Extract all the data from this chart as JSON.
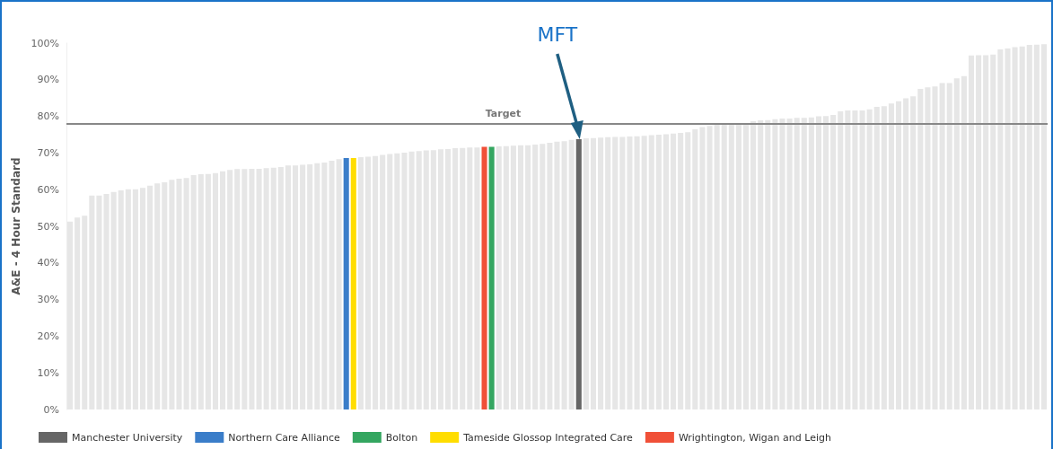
{
  "chart_data": {
    "type": "bar",
    "ylabel": "A&E - 4 Hour Standard",
    "categories": [
      null,
      null,
      null,
      null,
      null,
      null,
      null,
      null,
      null,
      null,
      null,
      null,
      null,
      null,
      null,
      null,
      null,
      null,
      null,
      null,
      null,
      null,
      null,
      null,
      null,
      null,
      null,
      null,
      null,
      null,
      null,
      null,
      null,
      null,
      null,
      null,
      null,
      null,
      null,
      null,
      null,
      null,
      null,
      null,
      null,
      null,
      null,
      null,
      null,
      null,
      null,
      null,
      null,
      null,
      null,
      null,
      null,
      null,
      null,
      null,
      null,
      null,
      null,
      null,
      null,
      null,
      null,
      null,
      null,
      null,
      null,
      null,
      null,
      null,
      null,
      null,
      null,
      null,
      null,
      null,
      null,
      null,
      null,
      null,
      null,
      null,
      null,
      null,
      null,
      null,
      null,
      null,
      null,
      null,
      null,
      null,
      null,
      null,
      null,
      null,
      null,
      null,
      null,
      null,
      null,
      null,
      null,
      null,
      null,
      null,
      null,
      null,
      null,
      null,
      null,
      null,
      null,
      null,
      null,
      null,
      null,
      null,
      null,
      null,
      null,
      null,
      null,
      null,
      null,
      null,
      null,
      null,
      null,
      null,
      null
    ],
    "series": [
      {
        "color": "#e6e6e6",
        "values": [
          51.3,
          52.4,
          52.9,
          58.4,
          58.4,
          58.8,
          59.4,
          59.8,
          60.1,
          60.1,
          60.5,
          61.1,
          61.7,
          62.0,
          62.7,
          63.0,
          63.2,
          64.0,
          64.2,
          64.3,
          64.5,
          65.0,
          65.4,
          65.6,
          65.6,
          65.7,
          65.7,
          65.9,
          66.0,
          66.2,
          66.6,
          66.6,
          66.8,
          66.9,
          67.2,
          67.4,
          67.9,
          68.3,
          null,
          null,
          68.9,
          69.0,
          69.2,
          69.5,
          69.7,
          69.9,
          70.1,
          70.4,
          70.5,
          70.7,
          70.8,
          71.0,
          71.1,
          71.3,
          71.4,
          71.5,
          71.5,
          null,
          null,
          71.8,
          71.9,
          72.0,
          72.1,
          72.1,
          72.3,
          72.5,
          72.8,
          73.1,
          73.2,
          73.6,
          null,
          74.0,
          74.1,
          74.2,
          74.3,
          74.4,
          74.4,
          74.5,
          74.6,
          74.7,
          74.9,
          75.0,
          75.1,
          75.3,
          75.5,
          75.7,
          76.5,
          77.1,
          77.4,
          77.7,
          77.7,
          77.8,
          77.8,
          78.0,
          78.7,
          78.9,
          79.0,
          79.2,
          79.4,
          79.4,
          79.6,
          79.6,
          79.7,
          80.0,
          80.1,
          80.4,
          81.4,
          81.6,
          81.6,
          81.6,
          81.9,
          82.6,
          82.8,
          83.5,
          84.1,
          84.9,
          85.5,
          87.5,
          87.9,
          88.2,
          89.1,
          89.1,
          90.4,
          91.0,
          96.6,
          96.7,
          96.7,
          96.9,
          98.3,
          98.5,
          98.9,
          99.1,
          99.5,
          99.6,
          99.7
        ]
      },
      {
        "name": "Manchester University",
        "color": "#666666",
        "values": [
          null,
          null,
          null,
          null,
          null,
          null,
          null,
          null,
          null,
          null,
          null,
          null,
          null,
          null,
          null,
          null,
          null,
          null,
          null,
          null,
          null,
          null,
          null,
          null,
          null,
          null,
          null,
          null,
          null,
          null,
          null,
          null,
          null,
          null,
          null,
          null,
          null,
          null,
          null,
          null,
          null,
          null,
          null,
          null,
          null,
          null,
          null,
          null,
          null,
          null,
          null,
          null,
          null,
          null,
          null,
          null,
          null,
          null,
          null,
          null,
          null,
          null,
          null,
          null,
          null,
          null,
          null,
          null,
          null,
          null,
          73.8,
          null,
          null,
          null,
          null,
          null,
          null,
          null,
          null,
          null,
          null,
          null,
          null,
          null,
          null,
          null,
          null,
          null,
          null,
          null,
          null,
          null,
          null,
          null,
          null,
          null,
          null,
          null,
          null,
          null,
          null,
          null,
          null,
          null,
          null,
          null,
          null,
          null,
          null,
          null,
          null,
          null,
          null,
          null,
          null,
          null,
          null,
          null,
          null,
          null,
          null,
          null,
          null,
          null,
          null,
          null,
          null,
          null,
          null,
          null,
          null,
          null,
          null,
          null,
          null
        ]
      },
      {
        "name": "Northern Care Alliance",
        "color": "#3a7dc9",
        "values": [
          null,
          null,
          null,
          null,
          null,
          null,
          null,
          null,
          null,
          null,
          null,
          null,
          null,
          null,
          null,
          null,
          null,
          null,
          null,
          null,
          null,
          null,
          null,
          null,
          null,
          null,
          null,
          null,
          null,
          null,
          null,
          null,
          null,
          null,
          null,
          null,
          null,
          null,
          68.6,
          null,
          null,
          null,
          null,
          null,
          null,
          null,
          null,
          null,
          null,
          null,
          null,
          null,
          null,
          null,
          null,
          null,
          null,
          null,
          null,
          null,
          null,
          null,
          null,
          null,
          null,
          null,
          null,
          null,
          null,
          null,
          null,
          null,
          null,
          null,
          null,
          null,
          null,
          null,
          null,
          null,
          null,
          null,
          null,
          null,
          null,
          null,
          null,
          null,
          null,
          null,
          null,
          null,
          null,
          null,
          null,
          null,
          null,
          null,
          null,
          null,
          null,
          null,
          null,
          null,
          null,
          null,
          null,
          null,
          null,
          null,
          null,
          null,
          null,
          null,
          null,
          null,
          null,
          null,
          null,
          null,
          null,
          null,
          null,
          null,
          null,
          null,
          null,
          null,
          null,
          null,
          null,
          null,
          null,
          null,
          null
        ]
      },
      {
        "name": "Bolton",
        "color": "#34a660",
        "values": [
          null,
          null,
          null,
          null,
          null,
          null,
          null,
          null,
          null,
          null,
          null,
          null,
          null,
          null,
          null,
          null,
          null,
          null,
          null,
          null,
          null,
          null,
          null,
          null,
          null,
          null,
          null,
          null,
          null,
          null,
          null,
          null,
          null,
          null,
          null,
          null,
          null,
          null,
          null,
          null,
          null,
          null,
          null,
          null,
          null,
          null,
          null,
          null,
          null,
          null,
          null,
          null,
          null,
          null,
          null,
          null,
          null,
          null,
          71.7,
          null,
          null,
          null,
          null,
          null,
          null,
          null,
          null,
          null,
          null,
          null,
          null,
          null,
          null,
          null,
          null,
          null,
          null,
          null,
          null,
          null,
          null,
          null,
          null,
          null,
          null,
          null,
          null,
          null,
          null,
          null,
          null,
          null,
          null,
          null,
          null,
          null,
          null,
          null,
          null,
          null,
          null,
          null,
          null,
          null,
          null,
          null,
          null,
          null,
          null,
          null,
          null,
          null,
          null,
          null,
          null,
          null,
          null,
          null,
          null,
          null,
          null,
          null,
          null,
          null,
          null,
          null,
          null,
          null,
          null,
          null,
          null,
          null,
          null,
          null,
          null
        ]
      },
      {
        "name": "Tameside Glossop Integrated Care",
        "color": "#ffdd00",
        "values": [
          null,
          null,
          null,
          null,
          null,
          null,
          null,
          null,
          null,
          null,
          null,
          null,
          null,
          null,
          null,
          null,
          null,
          null,
          null,
          null,
          null,
          null,
          null,
          null,
          null,
          null,
          null,
          null,
          null,
          null,
          null,
          null,
          null,
          null,
          null,
          null,
          null,
          null,
          null,
          68.6,
          null,
          null,
          null,
          null,
          null,
          null,
          null,
          null,
          null,
          null,
          null,
          null,
          null,
          null,
          null,
          null,
          null,
          null,
          null,
          null,
          null,
          null,
          null,
          null,
          null,
          null,
          null,
          null,
          null,
          null,
          null,
          null,
          null,
          null,
          null,
          null,
          null,
          null,
          null,
          null,
          null,
          null,
          null,
          null,
          null,
          null,
          null,
          null,
          null,
          null,
          null,
          null,
          null,
          null,
          null,
          null,
          null,
          null,
          null,
          null,
          null,
          null,
          null,
          null,
          null,
          null,
          null,
          null,
          null,
          null,
          null,
          null,
          null,
          null,
          null,
          null,
          null,
          null,
          null,
          null,
          null,
          null,
          null,
          null,
          null,
          null,
          null,
          null,
          null,
          null,
          null,
          null,
          null,
          null,
          null
        ]
      },
      {
        "name": "Wrightington, Wigan and Leigh",
        "color": "#f05038",
        "values": [
          null,
          null,
          null,
          null,
          null,
          null,
          null,
          null,
          null,
          null,
          null,
          null,
          null,
          null,
          null,
          null,
          null,
          null,
          null,
          null,
          null,
          null,
          null,
          null,
          null,
          null,
          null,
          null,
          null,
          null,
          null,
          null,
          null,
          null,
          null,
          null,
          null,
          null,
          null,
          null,
          null,
          null,
          null,
          null,
          null,
          null,
          null,
          null,
          null,
          null,
          null,
          null,
          null,
          null,
          null,
          null,
          null,
          71.7,
          null,
          null,
          null,
          null,
          null,
          null,
          null,
          null,
          null,
          null,
          null,
          null,
          null,
          null,
          null,
          null,
          null,
          null,
          null,
          null,
          null,
          null,
          null,
          null,
          null,
          null,
          null,
          null,
          null,
          null,
          null,
          null,
          null,
          null,
          null,
          null,
          null,
          null,
          null,
          null,
          null,
          null,
          null,
          null,
          null,
          null,
          null,
          null,
          null,
          null,
          null,
          null,
          null,
          null,
          null,
          null,
          null,
          null,
          null,
          null,
          null,
          null,
          null,
          null,
          null,
          null,
          null,
          null,
          null,
          null,
          null,
          null,
          null,
          null,
          null,
          null,
          null
        ]
      }
    ],
    "ylim": [
      0,
      100
    ],
    "yticks": [
      {
        "value": 0,
        "label": "0%"
      },
      {
        "value": 10,
        "label": "10%"
      },
      {
        "value": 20,
        "label": "20%"
      },
      {
        "value": 30,
        "label": "30%"
      },
      {
        "value": 40,
        "label": "40%"
      },
      {
        "value": 50,
        "label": "50%"
      },
      {
        "value": 60,
        "label": "60%"
      },
      {
        "value": 70,
        "label": "70%"
      },
      {
        "value": 80,
        "label": "80%"
      },
      {
        "value": 90,
        "label": "90%"
      },
      {
        "value": 100,
        "label": "100%"
      }
    ],
    "ref_lines": [
      {
        "axis": "y",
        "value": 78,
        "label": "Target",
        "color": "#888888"
      }
    ],
    "annotations": [
      "MFT"
    ],
    "legend": "bottom left",
    "grid": false
  }
}
